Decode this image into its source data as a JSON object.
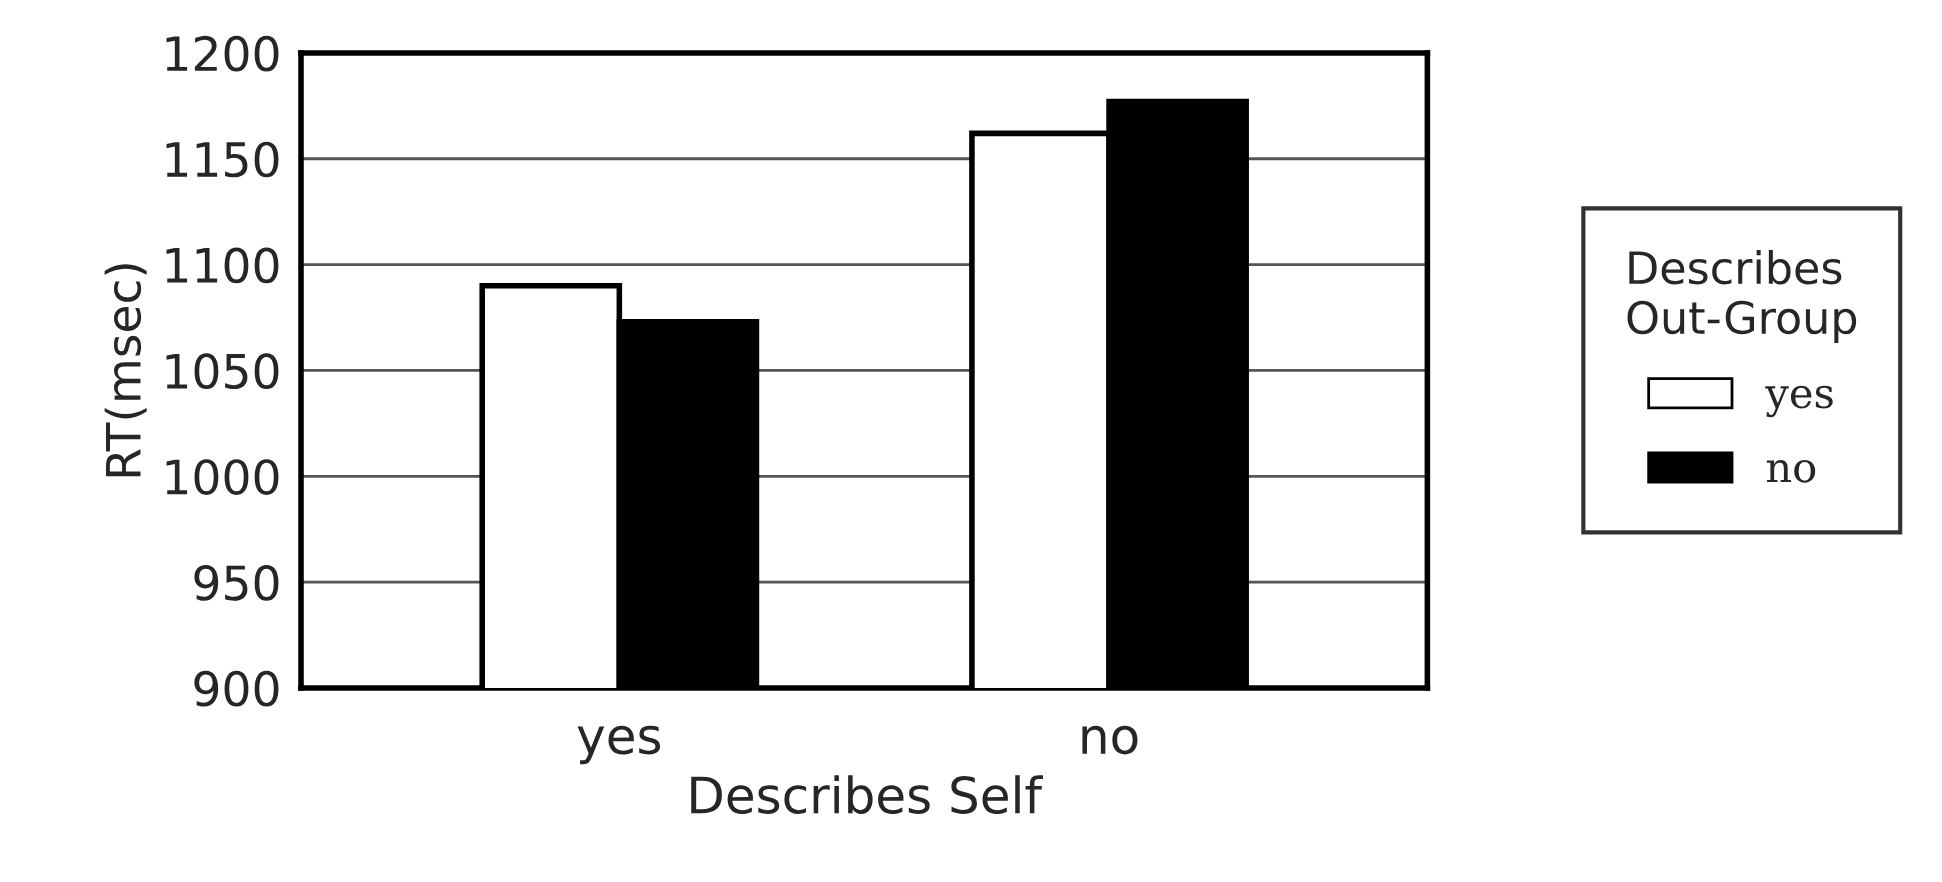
{
  "chart_data": {
    "type": "bar",
    "xlabel": "Describes Self",
    "ylabel": "RT(msec)",
    "legend_title": "Describes\nOut-Group",
    "categories": [
      "yes",
      "no"
    ],
    "series": [
      {
        "name": "yes",
        "color": "#ffffff",
        "values": [
          1090,
          1162
        ]
      },
      {
        "name": "no",
        "color": "#000000",
        "values": [
          1073,
          1177
        ]
      }
    ],
    "ylim": [
      900,
      1200
    ],
    "yticks": [
      900,
      950,
      1000,
      1050,
      1100,
      1150,
      1200
    ],
    "grid": "y",
    "legend": "right"
  }
}
